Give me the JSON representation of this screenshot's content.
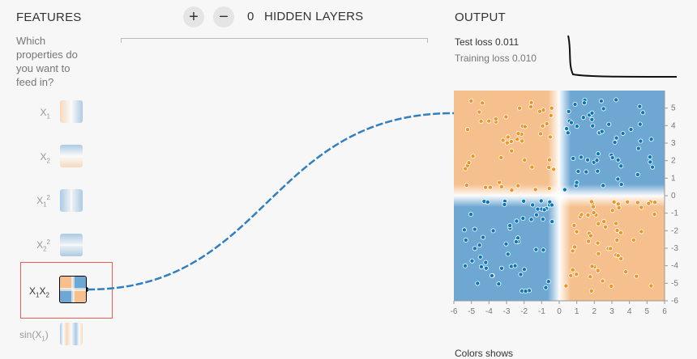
{
  "features": {
    "title": "FEATURES",
    "question": "Which properties do you want to feed in?",
    "items": [
      {
        "base": "X",
        "sub": "1",
        "sup": ""
      },
      {
        "base": "X",
        "sub": "2",
        "sup": ""
      },
      {
        "base": "X",
        "sub": "1",
        "sup": "2"
      },
      {
        "base": "X",
        "sub": "2",
        "sup": "2"
      },
      {
        "base": "X",
        "sub": "1",
        "base2": "X",
        "sub2": "2"
      },
      {
        "fn": "sin(X",
        "sub": "1",
        "close": ")"
      }
    ]
  },
  "network": {
    "add_label": "+",
    "remove_label": "−",
    "layer_count": "0",
    "layers_label": "HIDDEN LAYERS"
  },
  "output": {
    "title": "OUTPUT",
    "test_loss_label": "Test loss",
    "test_loss_value": "0.011",
    "training_loss_label": "Training loss",
    "training_loss_value": "0.010",
    "bottom_partial": "Colors shows"
  },
  "chart_data": {
    "type": "scatter",
    "title": "",
    "xlabel": "",
    "ylabel": "",
    "xlim": [
      -6,
      6
    ],
    "ylim": [
      -6,
      6
    ],
    "x_ticks": [
      "-6",
      "-5",
      "-4",
      "-3",
      "-2",
      "-1",
      "0",
      "1",
      "2",
      "3",
      "4",
      "5",
      "6"
    ],
    "y_ticks": [
      "5",
      "4",
      "3",
      "2",
      "1",
      "0",
      "-1",
      "-2",
      "-3",
      "-4",
      "-5",
      "-6"
    ],
    "series": [
      {
        "values_desc": "points where x*y > 0",
        "color": "#0877bd"
      },
      {
        "values_desc": "points where x*y < 0",
        "color": "#f59322"
      }
    ]
  },
  "colors": {
    "orange": "#f59322",
    "blue": "#0877bd",
    "bg_orange": "#f5c08d",
    "bg_blue": "#6fa7d3",
    "link": "#2f7fc1",
    "select_border": "#f15b55"
  }
}
